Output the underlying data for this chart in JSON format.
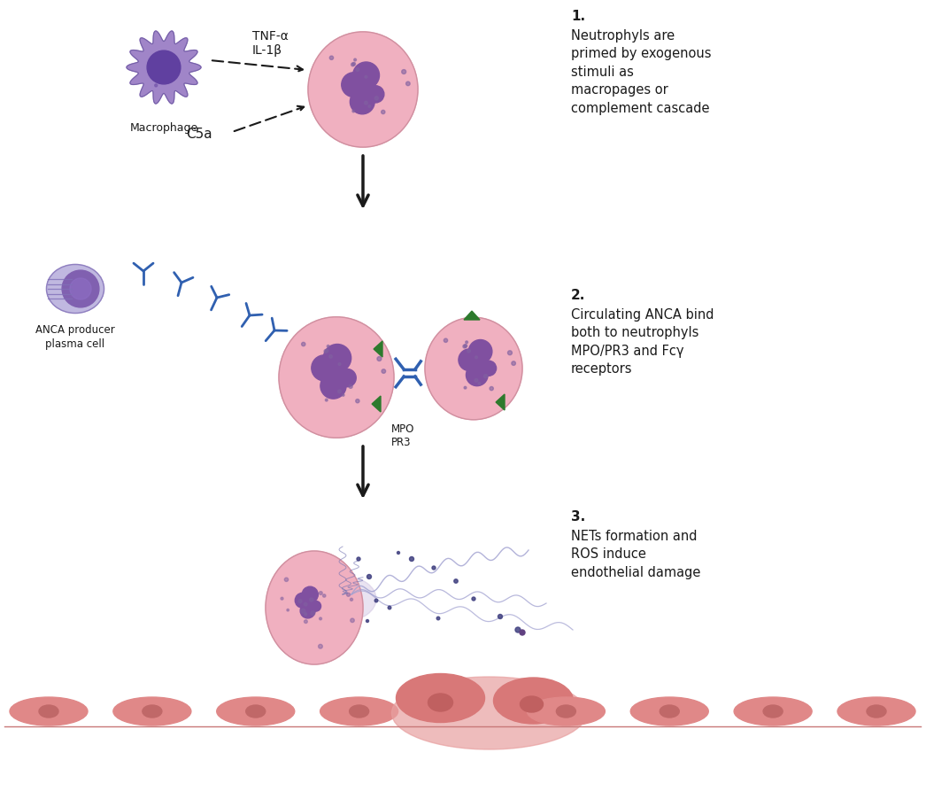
{
  "bg_color": "#ffffff",
  "text_color": "#1a1a1a",
  "neutrophil_color": "#f0b0c0",
  "neutrophil_edge_color": "#d090a0",
  "neutrophil_nucleus_color": "#8050a0",
  "macrophage_body_color": "#a085c8",
  "macrophage_edge_color": "#7560a8",
  "macrophage_nucleus_color": "#6040a0",
  "plasma_cell_color": "#c0b8e0",
  "plasma_cell_edge_color": "#9080c0",
  "plasma_cell_nucleus_color": "#8060b0",
  "antibody_color": "#3060b0",
  "receptor_color": "#2d7a2d",
  "endothelial_color": "#e08888",
  "endothelial_nucleus_color": "#c06868",
  "damaged_endo_color": "#d07070",
  "net_color": "#a0a0d0",
  "dot_color": "#404080",
  "dot_color2": "#604080",
  "arrow_color": "#1a1a1a",
  "label1_title": "1.",
  "label1_text": "Neutrophyls are\nprimed by exogenous\nstimuli as\nmacropages or\ncomplement cascade",
  "label2_title": "2.",
  "label2_text": "Circulating ANCA bind\nboth to neutrophyls\nMPO/PR3 and Fcγ\nreceptors",
  "label3_title": "3.",
  "label3_text": "NETs formation and\nROS induce\nendothelial damage",
  "tnf_label": "TNF-α\nIL-1β",
  "c5a_label": "C5a",
  "macrophage_label": "Macrophage",
  "plasma_label": "ANCA producer\nplasma cell",
  "mpo_pr3_label": "MPO\nPR3"
}
